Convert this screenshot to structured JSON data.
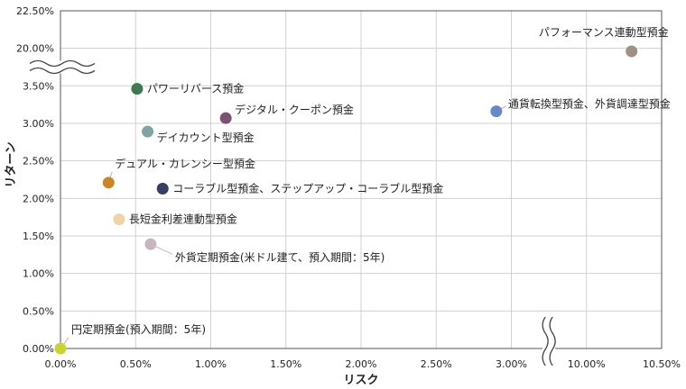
{
  "chart_data": {
    "type": "scatter",
    "xlabel": "リスク",
    "ylabel": "リターン",
    "x_ticks": [
      "0.00%",
      "0.50%",
      "1.00%",
      "1.50%",
      "2.00%",
      "2.50%",
      "3.00%",
      "10.00%",
      "10.50%"
    ],
    "y_ticks": [
      "0.00%",
      "0.50%",
      "1.00%",
      "1.50%",
      "2.00%",
      "2.50%",
      "3.00%",
      "3.50%",
      "20.00%",
      "22.50%"
    ],
    "x_axis_break": [
      3.0,
      10.0
    ],
    "y_axis_break": [
      3.5,
      20.0
    ],
    "grid": true,
    "points": [
      {
        "label": "円定期預金(預入期間：5年)",
        "x": 0.0,
        "y": 0.0,
        "color": "#c8d433"
      },
      {
        "label": "パワーリバース預金",
        "x": 0.51,
        "y": 3.46,
        "color": "#3f7a4f"
      },
      {
        "label": "デジタル・クーポン預金",
        "x": 1.1,
        "y": 3.07,
        "color": "#7a5274"
      },
      {
        "label": "デイカウント型預金",
        "x": 0.58,
        "y": 2.89,
        "color": "#82a3a4"
      },
      {
        "label": "デュアル・カレンシー型預金",
        "x": 0.32,
        "y": 2.21,
        "color": "#c8852c"
      },
      {
        "label": "コーラブル型預金、ステップアップ・コーラブル型預金",
        "x": 0.68,
        "y": 2.13,
        "color": "#343f63"
      },
      {
        "label": "長短金利差連動型預金",
        "x": 0.39,
        "y": 1.72,
        "color": "#f0d3a9"
      },
      {
        "label": "外貨定期預金(米ドル建て、預入期間：5年)",
        "x": 0.6,
        "y": 1.39,
        "color": "#c9b5c2"
      },
      {
        "label": "通貨転換型預金、外貨調達型預金",
        "x": 2.9,
        "y": 3.16,
        "color": "#6a87c9"
      },
      {
        "label": "パフォーマンス連動型預金",
        "x": 10.3,
        "y": 19.8,
        "color": "#9e9085"
      }
    ]
  }
}
